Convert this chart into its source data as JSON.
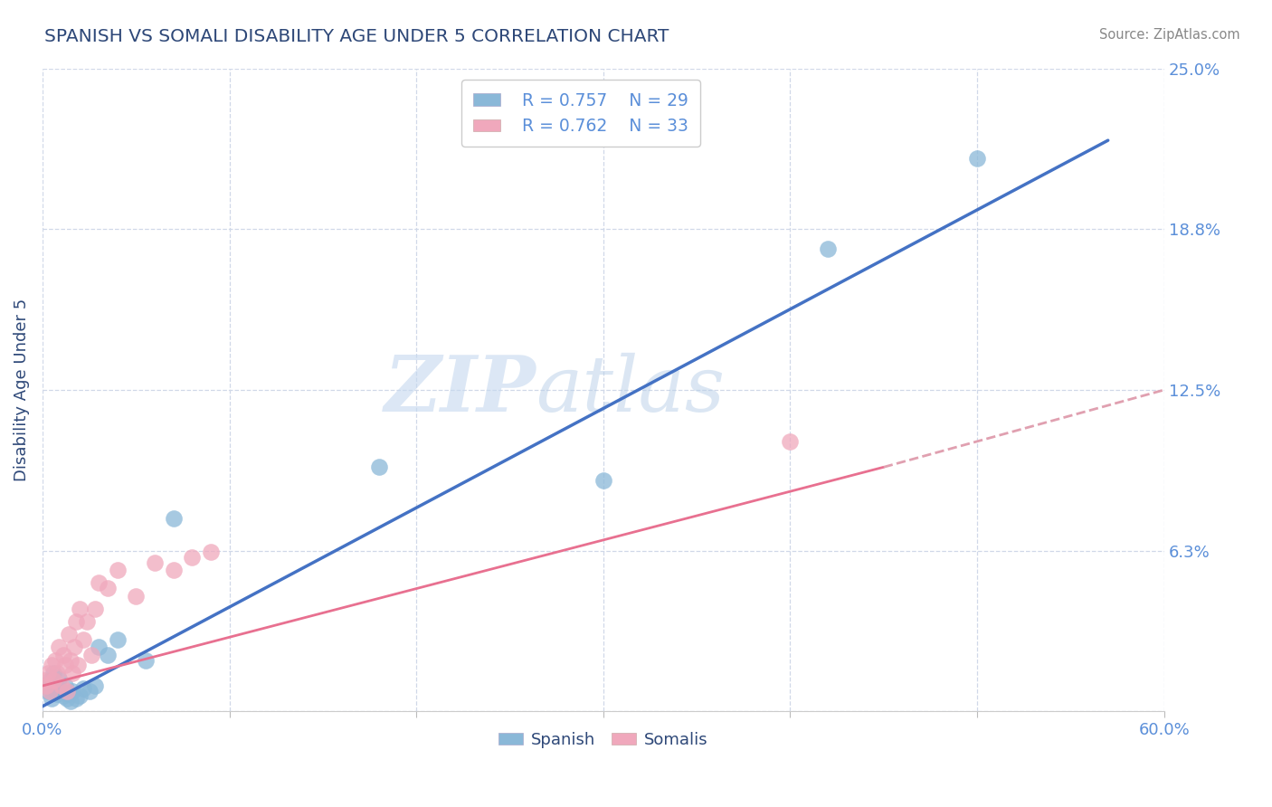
{
  "title": "SPANISH VS SOMALI DISABILITY AGE UNDER 5 CORRELATION CHART",
  "source": "Source: ZipAtlas.com",
  "ylabel": "Disability Age Under 5",
  "xlim": [
    0.0,
    0.6
  ],
  "ylim": [
    0.0,
    0.25
  ],
  "yticks": [
    0.0,
    0.0625,
    0.125,
    0.1875,
    0.25
  ],
  "ytick_labels": [
    "",
    "6.3%",
    "12.5%",
    "18.8%",
    "25.0%"
  ],
  "xticks": [
    0.0,
    0.1,
    0.2,
    0.3,
    0.4,
    0.5,
    0.6
  ],
  "xtick_labels": [
    "0.0%",
    "",
    "",
    "",
    "",
    "",
    "60.0%"
  ],
  "watermark_zip": "ZIP",
  "watermark_atlas": "atlas",
  "legend_spanish_r": "R = 0.757",
  "legend_spanish_n": "N = 29",
  "legend_somali_r": "R = 0.762",
  "legend_somali_n": "N = 33",
  "spanish_scatter_color": "#8ab8d8",
  "somali_scatter_color": "#f0a8bc",
  "spanish_line_color": "#4472c4",
  "somali_line_color": "#e87090",
  "somali_dashed_color": "#e0a0b0",
  "title_color": "#2e4878",
  "axis_label_color": "#2e4878",
  "tick_color": "#5b8fd9",
  "background_color": "#ffffff",
  "grid_color": "#d0d8e8",
  "spanish_points_x": [
    0.001,
    0.003,
    0.004,
    0.005,
    0.006,
    0.007,
    0.008,
    0.009,
    0.01,
    0.011,
    0.012,
    0.013,
    0.014,
    0.015,
    0.016,
    0.018,
    0.02,
    0.022,
    0.025,
    0.028,
    0.03,
    0.035,
    0.04,
    0.055,
    0.07,
    0.18,
    0.3,
    0.42,
    0.5
  ],
  "spanish_points_y": [
    0.01,
    0.008,
    0.012,
    0.005,
    0.015,
    0.009,
    0.007,
    0.013,
    0.008,
    0.006,
    0.01,
    0.005,
    0.007,
    0.004,
    0.008,
    0.005,
    0.006,
    0.009,
    0.008,
    0.01,
    0.025,
    0.022,
    0.028,
    0.02,
    0.075,
    0.095,
    0.09,
    0.18,
    0.215
  ],
  "somali_points_x": [
    0.001,
    0.002,
    0.003,
    0.004,
    0.005,
    0.006,
    0.007,
    0.008,
    0.009,
    0.01,
    0.011,
    0.012,
    0.013,
    0.014,
    0.015,
    0.016,
    0.017,
    0.018,
    0.019,
    0.02,
    0.022,
    0.024,
    0.026,
    0.028,
    0.03,
    0.035,
    0.04,
    0.05,
    0.06,
    0.07,
    0.08,
    0.09,
    0.4
  ],
  "somali_points_y": [
    0.012,
    0.01,
    0.015,
    0.008,
    0.018,
    0.012,
    0.02,
    0.015,
    0.025,
    0.01,
    0.022,
    0.018,
    0.008,
    0.03,
    0.02,
    0.015,
    0.025,
    0.035,
    0.018,
    0.04,
    0.028,
    0.035,
    0.022,
    0.04,
    0.05,
    0.048,
    0.055,
    0.045,
    0.058,
    0.055,
    0.06,
    0.062,
    0.105
  ],
  "spanish_line_x": [
    0.0,
    0.57
  ],
  "spanish_line_y": [
    0.002,
    0.222
  ],
  "somali_solid_line_x": [
    0.0,
    0.45
  ],
  "somali_solid_line_y": [
    0.01,
    0.095
  ],
  "somali_dashed_line_x": [
    0.45,
    0.6
  ],
  "somali_dashed_line_y": [
    0.095,
    0.125
  ]
}
